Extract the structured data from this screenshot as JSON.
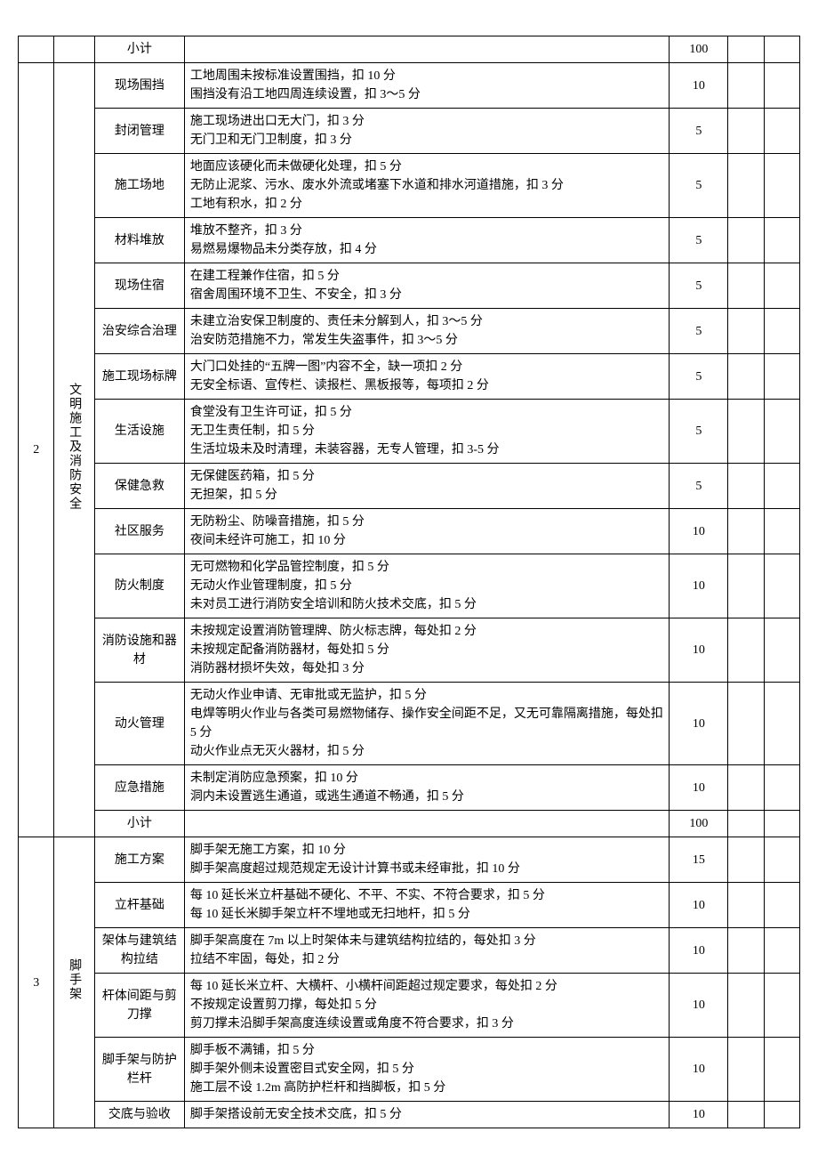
{
  "colors": {
    "border": "#000000",
    "text": "#000000",
    "background": "#ffffff"
  },
  "typography": {
    "font_family": "SimSun",
    "font_size_pt": 11,
    "line_height": 1.5
  },
  "table": {
    "column_widths_pct": [
      4,
      4.5,
      10,
      54,
      6.5,
      4,
      4
    ],
    "sections": [
      {
        "seq": "",
        "category": "",
        "rows": [
          {
            "item": "小计",
            "desc": "",
            "score": "100"
          }
        ]
      },
      {
        "seq": "2",
        "category": "文明施工及消防安全",
        "rows": [
          {
            "item": "现场围挡",
            "desc": "工地周围未按标准设置围挡，扣 10 分\n围挡没有沿工地四周连续设置，扣 3～5 分",
            "score": "10"
          },
          {
            "item": "封闭管理",
            "desc": "施工现场进出口无大门，扣 3 分\n无门卫和无门卫制度，扣 3 分",
            "score": "5"
          },
          {
            "item": "施工场地",
            "desc": "地面应该硬化而未做硬化处理，扣 5 分\n无防止泥浆、污水、废水外流或堵塞下水道和排水河道措施，扣 3 分\n工地有积水，扣 2 分",
            "score": "5"
          },
          {
            "item": "材料堆放",
            "desc": "堆放不整齐，扣 3 分\n易燃易爆物品未分类存放，扣 4 分",
            "score": "5"
          },
          {
            "item": "现场住宿",
            "desc": "在建工程兼作住宿，扣 5 分\n宿舍周围环境不卫生、不安全，扣 3 分",
            "score": "5"
          },
          {
            "item": "治安综合治理",
            "desc": "未建立治安保卫制度的、责任未分解到人，扣 3～5 分\n治安防范措施不力，常发生失盗事件，扣 3～5 分",
            "score": "5"
          },
          {
            "item": "施工现场标牌",
            "desc": "大门口处挂的“五牌一图”内容不全，缺一项扣 2 分\n无安全标语、宣传栏、读报栏、黑板报等，每项扣 2 分",
            "score": "5"
          },
          {
            "item": "生活设施",
            "desc": "食堂没有卫生许可证，扣 5 分\n无卫生责任制，扣 5 分\n生活垃圾未及时清理，未装容器，无专人管理，扣 3-5 分",
            "score": "5"
          },
          {
            "item": "保健急救",
            "desc": "无保健医药箱，扣 5 分\n无担架，扣 5 分",
            "score": "5"
          },
          {
            "item": "社区服务",
            "desc": "无防粉尘、防噪音措施，扣 5 分\n夜间未经许可施工，扣 10 分",
            "score": "10"
          },
          {
            "item": "防火制度",
            "desc": "无可燃物和化学品管控制度，扣 5 分\n无动火作业管理制度，扣 5 分\n未对员工进行消防安全培训和防火技术交底，扣 5 分",
            "score": "10"
          },
          {
            "item": "消防设施和器材",
            "desc": "未按规定设置消防管理牌、防火标志牌，每处扣 2 分\n未按规定配备消防器材，每处扣 5 分\n消防器材损坏失效，每处扣 3 分",
            "score": "10"
          },
          {
            "item": "动火管理",
            "desc": "无动火作业申请、无审批或无监护，扣 5 分\n电焊等明火作业与各类可易燃物储存、操作安全间距不足，又无可靠隔离措施，每处扣 5 分\n动火作业点无灭火器材，扣 5 分",
            "score": "10"
          },
          {
            "item": "应急措施",
            "desc": "未制定消防应急预案，扣 10 分\n洞内未设置逃生通道，或逃生通道不畅通，扣 5 分",
            "score": "10"
          },
          {
            "item": "小计",
            "desc": "",
            "score": "100"
          }
        ]
      },
      {
        "seq": "3",
        "category": "脚手架",
        "rows": [
          {
            "item": "施工方案",
            "desc": "脚手架无施工方案，扣 10 分\n脚手架高度超过规范规定无设计计算书或未经审批，扣 10 分",
            "score": "15"
          },
          {
            "item": "立杆基础",
            "desc": "每 10 延长米立杆基础不硬化、不平、不实、不符合要求，扣 5 分\n每 10 延长米脚手架立杆不埋地或无扫地杆，扣 5 分",
            "score": "10"
          },
          {
            "item": "架体与建筑结构拉结",
            "desc": "脚手架高度在 7m 以上时架体未与建筑结构拉结的，每处扣 3 分\n拉结不牢固，每处，扣 2 分",
            "score": "10"
          },
          {
            "item": "杆体间距与剪刀撑",
            "desc": "每 10 延长米立杆、大横杆、小横杆间距超过规定要求，每处扣 2 分\n不按规定设置剪刀撑，每处扣 5 分\n剪刀撑未沿脚手架高度连续设置或角度不符合要求，扣 3 分",
            "score": "10"
          },
          {
            "item": "脚手架与防护栏杆",
            "desc": "脚手板不满铺，扣 5 分\n脚手架外侧未设置密目式安全网，扣 5 分\n施工层不设 1.2m 高防护栏杆和挡脚板，扣 5 分",
            "score": "10"
          },
          {
            "item": "交底与验收",
            "desc": "脚手架搭设前无安全技术交底，扣 5 分",
            "score": "10"
          }
        ]
      }
    ]
  }
}
